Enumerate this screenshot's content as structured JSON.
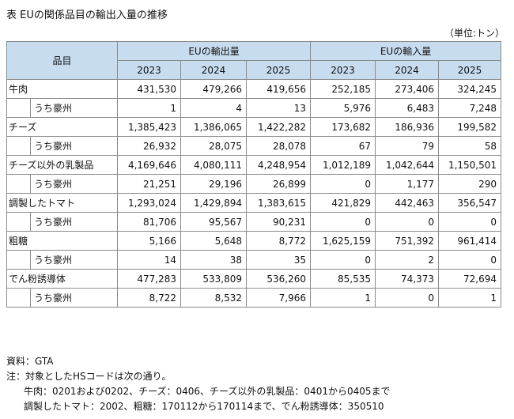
{
  "title": "表  EUの関係品目の輸出入量の推移",
  "unit": "（単位:トン）",
  "header": {
    "item_label": "品目",
    "export_label": "EUの輸出量",
    "import_label": "EUの輸入量",
    "years": [
      "2023",
      "2024",
      "2025"
    ]
  },
  "rows": [
    {
      "label": "牛肉",
      "values": [
        "431,530",
        "479,266",
        "419,656",
        "252,185",
        "273,406",
        "324,245"
      ],
      "sub": {
        "label": "うち豪州",
        "values": [
          "1",
          "4",
          "13",
          "5,976",
          "6,483",
          "7,248"
        ]
      }
    },
    {
      "label": "チーズ",
      "values": [
        "1,385,423",
        "1,386,065",
        "1,422,282",
        "173,682",
        "186,936",
        "199,582"
      ],
      "sub": {
        "label": "うち豪州",
        "values": [
          "26,932",
          "28,075",
          "28,078",
          "67",
          "79",
          "58"
        ]
      }
    },
    {
      "label": "チーズ以外の乳製品",
      "values": [
        "4,169,646",
        "4,080,111",
        "4,248,954",
        "1,012,189",
        "1,042,644",
        "1,150,501"
      ],
      "sub": {
        "label": "うち豪州",
        "values": [
          "21,251",
          "29,196",
          "26,899",
          "0",
          "1,177",
          "290"
        ]
      }
    },
    {
      "label": "調製したトマト",
      "values": [
        "1,293,024",
        "1,429,894",
        "1,383,615",
        "421,829",
        "442,463",
        "356,547"
      ],
      "sub": {
        "label": "うち豪州",
        "values": [
          "81,706",
          "95,567",
          "90,231",
          "0",
          "0",
          "0"
        ]
      }
    },
    {
      "label": "粗糖",
      "values": [
        "5,166",
        "5,648",
        "8,772",
        "1,625,159",
        "751,392",
        "961,414"
      ],
      "sub": {
        "label": "うち豪州",
        "values": [
          "14",
          "38",
          "35",
          "0",
          "2",
          "0"
        ]
      }
    },
    {
      "label": "でん粉誘導体",
      "values": [
        "477,283",
        "533,809",
        "536,260",
        "85,535",
        "74,373",
        "72,694"
      ],
      "sub": {
        "label": "うち豪州",
        "values": [
          "8,722",
          "8,532",
          "7,966",
          "1",
          "0",
          "1"
        ]
      }
    }
  ],
  "notes": {
    "source": "資料：GTA",
    "note_intro": "注：対象としたHSコードは次の通り。",
    "note_line1": "牛肉：0201および0202、チーズ：0406、チーズ以外の乳製品：0401から0405まで",
    "note_line2": "調製したトマト：2002、粗糖：170112から170114まで、でん粉誘導体：350510"
  }
}
